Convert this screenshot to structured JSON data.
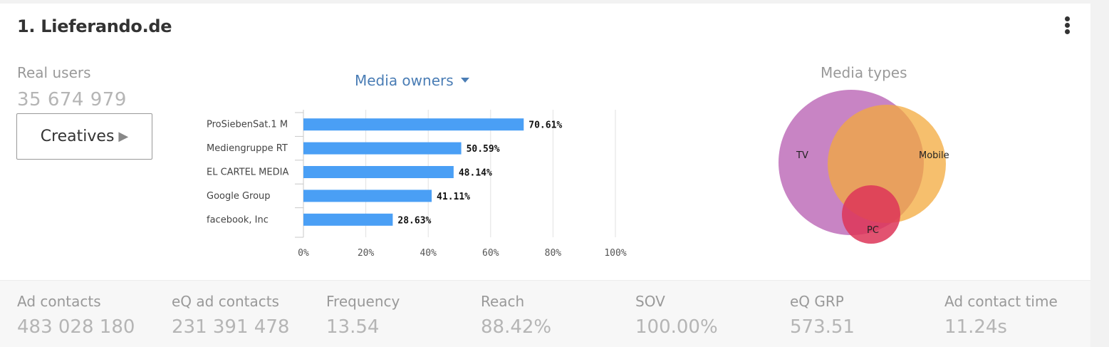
{
  "card": {
    "title": "1. Lieferando.de",
    "menu_icon": "more-vertical-icon"
  },
  "real_users": {
    "label": "Real users",
    "value": "35 674 979"
  },
  "creatives_button": {
    "label": "Creatives",
    "icon": "play-icon",
    "glyph": "▶"
  },
  "media_owners": {
    "title": "Media owners",
    "dropdown_icon": "caret-down-icon"
  },
  "chart_data": {
    "type": "bar",
    "orientation": "horizontal",
    "categories": [
      "ProSiebenSat.1 M",
      "Mediengruppe RT",
      "EL CARTEL MEDIA",
      "Google Group",
      "facebook, Inc"
    ],
    "values": [
      70.61,
      50.59,
      48.14,
      41.11,
      28.63
    ],
    "value_labels": [
      "70.61%",
      "50.59%",
      "48.14%",
      "41.11%",
      "28.63%"
    ],
    "xlim": [
      0,
      100
    ],
    "xticks": [
      "0%",
      "20%",
      "40%",
      "60%",
      "80%",
      "100%"
    ],
    "grid": true,
    "color": "#4a9ff5"
  },
  "media_types": {
    "title": "Media types",
    "type": "venn",
    "sets": [
      {
        "label": "TV",
        "color": "#b55bb0"
      },
      {
        "label": "Mobile",
        "color": "#f3a93c"
      },
      {
        "label": "PC",
        "color": "#dd3558"
      }
    ]
  },
  "stats": [
    {
      "label": "Ad contacts",
      "value": "483 028 180"
    },
    {
      "label": "eQ ad contacts",
      "value": "231 391 478"
    },
    {
      "label": "Frequency",
      "value": "13.54"
    },
    {
      "label": "Reach",
      "value": "88.42%"
    },
    {
      "label": "SOV",
      "value": "100.00%"
    },
    {
      "label": "eQ GRP",
      "value": "573.51"
    },
    {
      "label": "Ad contact time",
      "value": "11.24s"
    }
  ]
}
